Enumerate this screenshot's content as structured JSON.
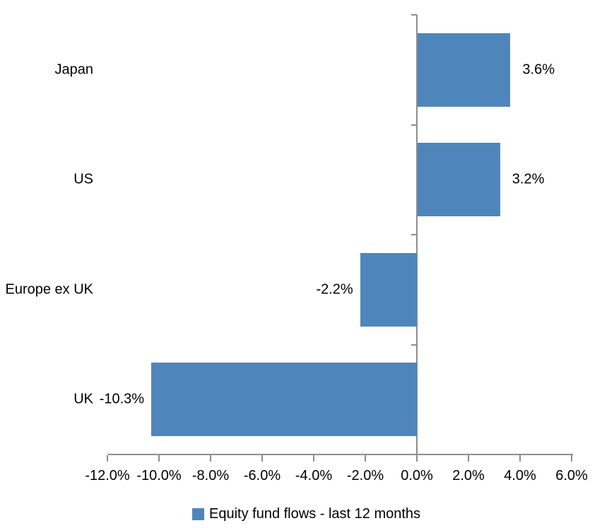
{
  "chart_data": {
    "type": "bar",
    "orientation": "horizontal",
    "title": "",
    "categories": [
      "Japan",
      "US",
      "Europe ex UK",
      "UK"
    ],
    "series": [
      {
        "name": "Equity fund flows - last 12 months",
        "values": [
          3.6,
          3.2,
          -2.2,
          -10.3
        ]
      }
    ],
    "data_labels": [
      "3.6%",
      "3.2%",
      "-2.2%",
      "-10.3%"
    ],
    "x_ticks": [
      -12,
      -10,
      -8,
      -6,
      -4,
      -2,
      0,
      2,
      4,
      6
    ],
    "x_tick_labels": [
      "-12.0%",
      "-10.0%",
      "-8.0%",
      "-6.0%",
      "-4.0%",
      "-2.0%",
      "0.0%",
      "2.0%",
      "4.0%",
      "6.0%"
    ],
    "xlim": [
      -12,
      6
    ],
    "ylim_categories": 4,
    "grid": false,
    "legend_position": "bottom",
    "bar_color": "#4E86BC",
    "axis_color": "#8E8E8E",
    "text_color": "#000000",
    "background_color": "#FFFFFF"
  },
  "legend": {
    "label": "Equity fund flows - last 12 months",
    "marker_color": "#4E86BC"
  }
}
